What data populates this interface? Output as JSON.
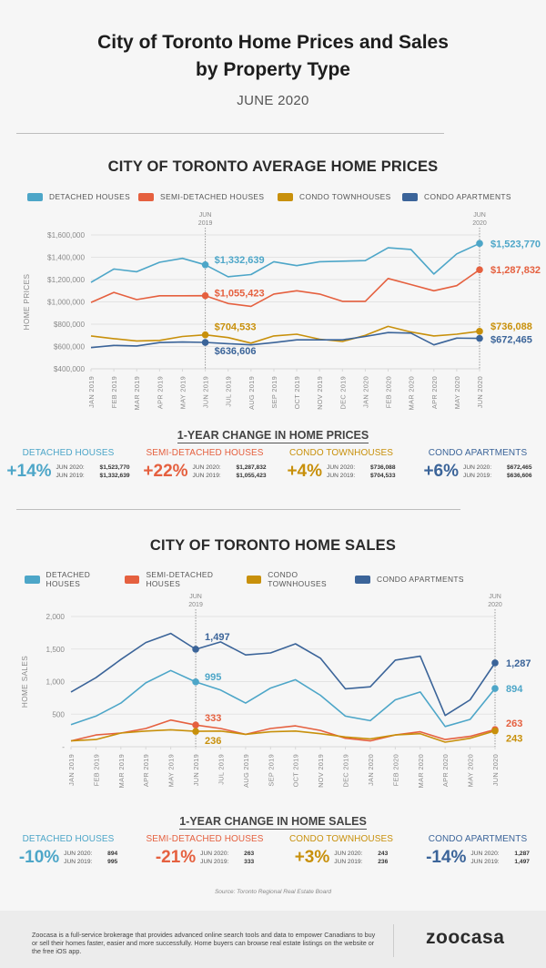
{
  "header": {
    "title_line1": "City of Toronto Home Prices and Sales",
    "title_line2": "by Property Type",
    "subtitle": "JUNE 2020"
  },
  "colors": {
    "detached": "#4da6c8",
    "semi": "#e5603f",
    "townhouse": "#c8900b",
    "apartment": "#3b6499",
    "grid": "#e3e3e3",
    "axis_text": "#8a8a8a"
  },
  "legend": [
    {
      "key": "detached",
      "label": "DETACHED HOUSES"
    },
    {
      "key": "semi",
      "label": "SEMI-DETACHED HOUSES"
    },
    {
      "key": "townhouse",
      "label": "CONDO TOWNHOUSES"
    },
    {
      "key": "apartment",
      "label": "CONDO APARTMENTS"
    }
  ],
  "chart_data": [
    {
      "type": "line",
      "title": "CITY OF TORONTO AVERAGE HOME PRICES",
      "xlabel": "",
      "ylabel": "HOME PRICES",
      "ylim": [
        400000,
        1600000
      ],
      "yticks": [
        400000,
        600000,
        800000,
        1000000,
        1200000,
        1400000,
        1600000
      ],
      "ytick_labels": [
        "$400,000",
        "$600,000",
        "$800,000",
        "$1,000,000",
        "$1,200,000",
        "$1,400,000",
        "$1,600,000"
      ],
      "grid": true,
      "legend": "top",
      "categories": [
        "JAN 2019",
        "FEB 2019",
        "MAR 2019",
        "APR 2019",
        "MAY 2019",
        "JUN 2019",
        "JUL 2019",
        "AUG 2019",
        "SEP 2019",
        "OCT 2019",
        "NOV 2019",
        "DEC 2019",
        "JAN 2020",
        "FEB 2020",
        "MAR 2020",
        "APR 2020",
        "MAY 2020",
        "JUN 2020"
      ],
      "markers": [
        {
          "index": 5,
          "label_line1": "JUN",
          "label_line2": "2019"
        },
        {
          "index": 17,
          "label_line1": "JUN",
          "label_line2": "2020"
        }
      ],
      "series": [
        {
          "key": "detached",
          "name": "DETACHED HOUSES",
          "values": [
            1175000,
            1295000,
            1270000,
            1355000,
            1390000,
            1332639,
            1225000,
            1245000,
            1360000,
            1325000,
            1360000,
            1365000,
            1370000,
            1485000,
            1470000,
            1250000,
            1430000,
            1523770
          ],
          "label_jun2019": "$1,332,639",
          "label_jun2020": "$1,523,770"
        },
        {
          "key": "semi",
          "name": "SEMI-DETACHED HOUSES",
          "values": [
            995000,
            1085000,
            1020000,
            1055000,
            1055000,
            1055423,
            985000,
            960000,
            1070000,
            1100000,
            1070000,
            1005000,
            1005000,
            1210000,
            1155000,
            1100000,
            1145000,
            1287832
          ],
          "label_jun2019": "$1,055,423",
          "label_jun2020": "$1,287,832"
        },
        {
          "key": "townhouse",
          "name": "CONDO TOWNHOUSES",
          "values": [
            695000,
            670000,
            650000,
            655000,
            690000,
            704533,
            680000,
            630000,
            695000,
            710000,
            665000,
            645000,
            700000,
            780000,
            730000,
            695000,
            710000,
            736088
          ],
          "label_jun2019": "$704,533",
          "label_jun2020": "$736,088"
        },
        {
          "key": "apartment",
          "name": "CONDO APARTMENTS",
          "values": [
            590000,
            610000,
            605000,
            635000,
            640000,
            636606,
            625000,
            615000,
            635000,
            660000,
            660000,
            660000,
            690000,
            725000,
            720000,
            615000,
            675000,
            672465
          ],
          "label_jun2019": "$636,606",
          "label_jun2020": "$672,465"
        }
      ]
    },
    {
      "type": "line",
      "title": "CITY OF TORONTO HOME SALES",
      "xlabel": "",
      "ylabel": "HOME SALES",
      "ylim": [
        0,
        2000
      ],
      "yticks": [
        0,
        500,
        1000,
        1500,
        2000
      ],
      "ytick_labels": [
        "-",
        "500",
        "1,000",
        "1,500",
        "2,000"
      ],
      "grid": true,
      "legend": "top",
      "categories": [
        "JAN 2019",
        "FEB 2019",
        "MAR 2019",
        "APR 2019",
        "MAY 2019",
        "JUN 2019",
        "JUL 2019",
        "AUG 2019",
        "SEP 2019",
        "OCT 2019",
        "NOV 2019",
        "DEC 2019",
        "JAN 2020",
        "FEB 2020",
        "MAR 2020",
        "APR 2020",
        "MAY 2020",
        "JUN 2020"
      ],
      "markers": [
        {
          "index": 5,
          "label_line1": "JUN",
          "label_line2": "2019"
        },
        {
          "index": 17,
          "label_line1": "JUN",
          "label_line2": "2020"
        }
      ],
      "series": [
        {
          "key": "apartment",
          "name": "CONDO APARTMENTS",
          "values": [
            840,
            1060,
            1340,
            1600,
            1740,
            1497,
            1610,
            1410,
            1440,
            1580,
            1360,
            890,
            920,
            1330,
            1390,
            480,
            720,
            1287
          ],
          "label_jun2019": "1,497",
          "label_jun2020": "1,287"
        },
        {
          "key": "detached",
          "name": "DETACHED HOUSES",
          "values": [
            340,
            470,
            670,
            980,
            1170,
            995,
            870,
            670,
            900,
            1030,
            790,
            470,
            400,
            720,
            840,
            310,
            420,
            894
          ],
          "label_jun2019": "995",
          "label_jun2020": "894"
        },
        {
          "key": "semi",
          "name": "SEMI-DETACHED HOUSES",
          "values": [
            90,
            180,
            210,
            280,
            410,
            333,
            280,
            190,
            280,
            320,
            250,
            130,
            90,
            180,
            230,
            110,
            160,
            263
          ],
          "label_jun2019": "333",
          "label_jun2020": "263"
        },
        {
          "key": "townhouse",
          "name": "CONDO TOWNHOUSES",
          "values": [
            90,
            110,
            210,
            240,
            260,
            236,
            240,
            190,
            230,
            240,
            200,
            150,
            120,
            180,
            200,
            70,
            130,
            243
          ],
          "label_jun2019": "236",
          "label_jun2020": "243"
        }
      ]
    }
  ],
  "price_change": {
    "heading": "1-YEAR CHANGE IN HOME PRICES",
    "items": [
      {
        "key": "detached",
        "label": "DETACHED HOUSES",
        "pct": "+14%",
        "jun2020_label": "JUN 2020:",
        "jun2020": "$1,523,770",
        "jun2019_label": "JUN 2019:",
        "jun2019": "$1,332,639"
      },
      {
        "key": "semi",
        "label": "SEMI-DETACHED HOUSES",
        "pct": "+22%",
        "jun2020_label": "JUN 2020:",
        "jun2020": "$1,287,832",
        "jun2019_label": "JUN 2019:",
        "jun2019": "$1,055,423"
      },
      {
        "key": "townhouse",
        "label": "CONDO TOWNHOUSES",
        "pct": "+4%",
        "jun2020_label": "JUN 2020:",
        "jun2020": "$736,088",
        "jun2019_label": "JUN 2019:",
        "jun2019": "$704,533"
      },
      {
        "key": "apartment",
        "label": "CONDO APARTMENTS",
        "pct": "+6%",
        "jun2020_label": "JUN 2020:",
        "jun2020": "$672,465",
        "jun2019_label": "JUN 2019:",
        "jun2019": "$636,606"
      }
    ]
  },
  "sales_change": {
    "heading": "1-YEAR CHANGE IN HOME SALES",
    "items": [
      {
        "key": "detached",
        "label": "DETACHED HOUSES",
        "pct": "-10%",
        "jun2020_label": "JUN 2020:",
        "jun2020": "894",
        "jun2019_label": "JUN 2019:",
        "jun2019": "995"
      },
      {
        "key": "semi",
        "label": "SEMI-DETACHED HOUSES",
        "pct": "-21%",
        "jun2020_label": "JUN 2020:",
        "jun2020": "263",
        "jun2019_label": "JUN 2019:",
        "jun2019": "333"
      },
      {
        "key": "townhouse",
        "label": "CONDO TOWNHOUSES",
        "pct": "+3%",
        "jun2020_label": "JUN 2020:",
        "jun2020": "243",
        "jun2019_label": "JUN 2019:",
        "jun2019": "236"
      },
      {
        "key": "apartment",
        "label": "CONDO APARTMENTS",
        "pct": "-14%",
        "jun2020_label": "JUN 2020:",
        "jun2020": "1,287",
        "jun2019_label": "JUN 2019:",
        "jun2019": "1,497"
      }
    ]
  },
  "source": "Source: Toronto Regional Real Estate Board",
  "footer": {
    "text": "Zoocasa is a full-service brokerage that provides advanced online search tools and data to empower Canadians to buy or sell their homes faster, easier and more successfully. Home buyers can browse real estate listings on the website or the free iOS app.",
    "logo": "zoocasa"
  }
}
